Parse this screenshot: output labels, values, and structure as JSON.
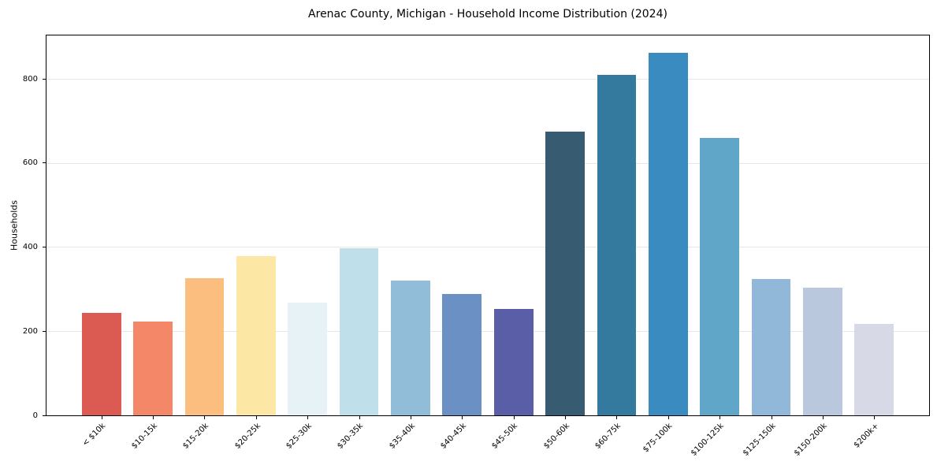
{
  "figure": {
    "title": "Arenac County, Michigan - Household Income Distribution (2024)"
  },
  "chart_data": {
    "type": "bar",
    "title": "Arenac County, Michigan - Household Income Distribution (2024)",
    "xlabel": "",
    "ylabel": "Households",
    "categories": [
      "< $10k",
      "$10-15k",
      "$15-20k",
      "$20-25k",
      "$25-30k",
      "$30-35k",
      "$35-40k",
      "$40-45k",
      "$45-50k",
      "$50-60k",
      "$60-75k",
      "$75-100k",
      "$100-125k",
      "$125-150k",
      "$150-200k",
      "$200k+"
    ],
    "values": [
      244,
      223,
      328,
      379,
      268,
      398,
      321,
      289,
      254,
      676,
      812,
      864,
      661,
      325,
      305,
      218
    ],
    "bar_colors": [
      "#db5a52",
      "#f48767",
      "#fbbe7e",
      "#fde7a5",
      "#e7f2f6",
      "#bfdfeb",
      "#92bdd9",
      "#6b90c4",
      "#5a5ea7",
      "#375c72",
      "#34799e",
      "#398bc0",
      "#5fa6c8",
      "#91b8d8",
      "#b9c8dc",
      "#d7d9e7"
    ],
    "yticks": [
      0,
      200,
      400,
      600,
      800
    ],
    "ylim": [
      0,
      906
    ],
    "grid": "horizontal",
    "legend": "none",
    "colors": {
      "background": "#ffffff",
      "grid_color": "#e7e7e7",
      "spine_color": "#000000",
      "text_color": "#000000"
    }
  }
}
